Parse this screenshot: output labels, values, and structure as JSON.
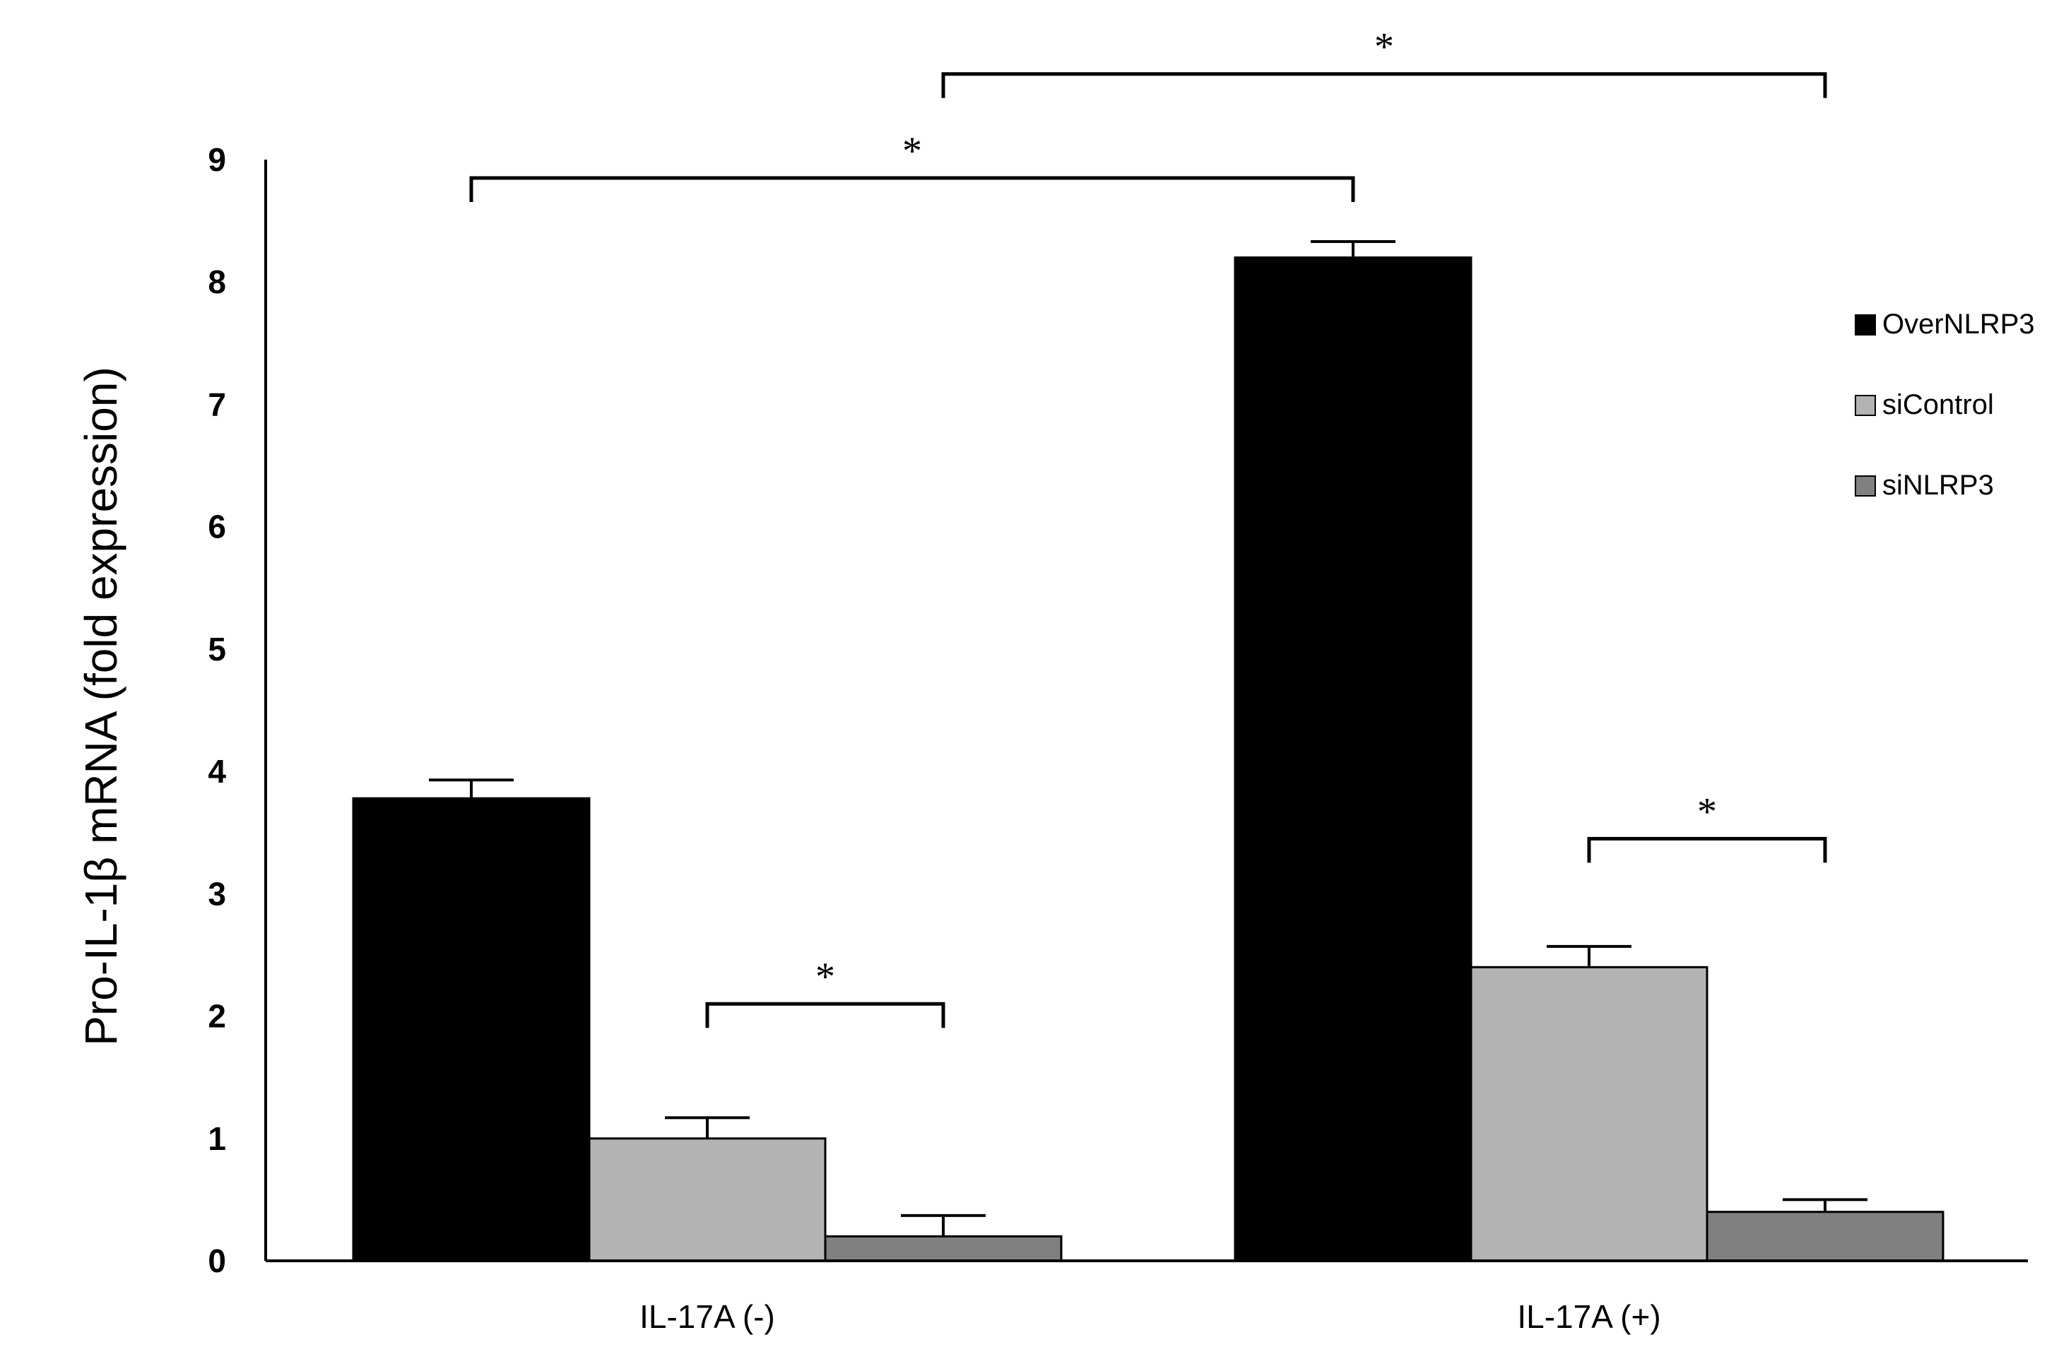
{
  "chart_data": {
    "type": "bar",
    "title": "",
    "xlabel": "",
    "ylabel": "Pro-IL-1β mRNA (fold expression)",
    "ylim": [
      0,
      9
    ],
    "yticks": [
      0,
      1,
      2,
      3,
      4,
      5,
      6,
      7,
      8,
      9
    ],
    "categories": [
      "IL-17A (-)",
      "IL-17A (+)"
    ],
    "series": [
      {
        "name": "OverNLRP3",
        "color": "#000000",
        "values": [
          3.78,
          8.2
        ],
        "errors": [
          0.15,
          0.13
        ]
      },
      {
        "name": "siControl",
        "color": "#b3b3b3",
        "values": [
          1.0,
          2.4
        ],
        "errors": [
          0.17,
          0.17
        ]
      },
      {
        "name": "siNLRP3",
        "color": "#808080",
        "values": [
          0.2,
          0.4
        ],
        "errors": [
          0.17,
          0.1
        ]
      }
    ],
    "legend": {
      "position": "right"
    },
    "grid": false,
    "significance": [
      {
        "label": "*",
        "from": {
          "category": 0,
          "series": 1
        },
        "to": {
          "category": 0,
          "series": 2
        },
        "height": 2.1
      },
      {
        "label": "*",
        "from": {
          "category": 1,
          "series": 1
        },
        "to": {
          "category": 1,
          "series": 2
        },
        "height": 3.45
      },
      {
        "label": "*",
        "from": {
          "category": 0,
          "series": 0
        },
        "to": {
          "category": 1,
          "series": 0
        },
        "height": 8.85
      },
      {
        "label": "*",
        "from": {
          "category": 0,
          "series": 2
        },
        "to": {
          "category": 1,
          "series": 2
        },
        "height": 9.7
      }
    ]
  }
}
